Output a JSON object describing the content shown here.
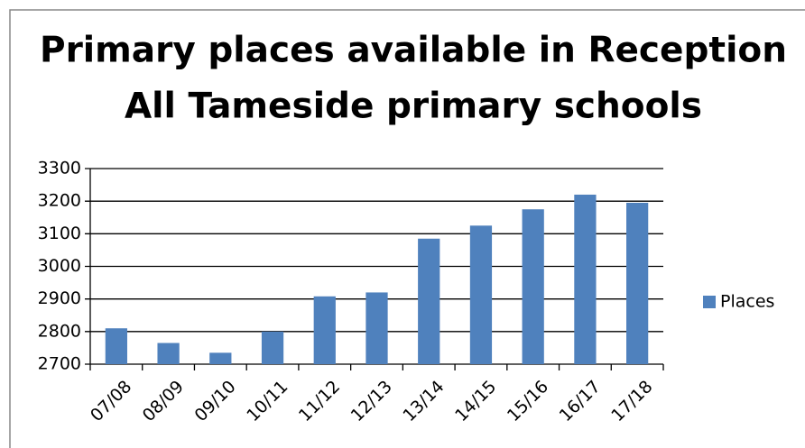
{
  "chart_data": {
    "type": "bar",
    "title": [
      "Primary places available in Reception",
      "All Tameside primary schools"
    ],
    "categories": [
      "07/08",
      "08/09",
      "09/10",
      "10/11",
      "11/12",
      "12/13",
      "13/14",
      "14/15",
      "15/16",
      "16/17",
      "17/18"
    ],
    "series": [
      {
        "name": "Places",
        "color": "#4f81bd",
        "values": [
          2810,
          2765,
          2735,
          2800,
          2908,
          2920,
          3085,
          3125,
          3175,
          3220,
          3195
        ]
      }
    ],
    "ylim": [
      2700,
      3300
    ],
    "yticks": [
      2700,
      2800,
      2900,
      3000,
      3100,
      3200,
      3300
    ],
    "grid": true,
    "legend": "right"
  }
}
